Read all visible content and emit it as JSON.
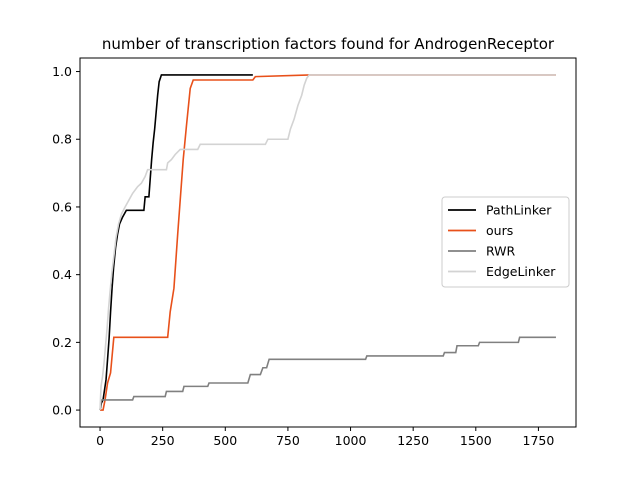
{
  "chart_data": {
    "type": "line",
    "title": "number of transcription factors found for AndrogenReceptor",
    "xlabel": "",
    "ylabel": "",
    "xlim": [
      -80,
      1900
    ],
    "ylim": [
      -0.05,
      1.04
    ],
    "xticks": [
      0,
      250,
      500,
      750,
      1000,
      1250,
      1500,
      1750
    ],
    "xtick_labels": [
      "0",
      "250",
      "500",
      "750",
      "1000",
      "1250",
      "1500",
      "1750"
    ],
    "yticks": [
      0.0,
      0.2,
      0.4,
      0.6,
      0.8,
      1.0
    ],
    "ytick_labels": [
      "0.0",
      "0.2",
      "0.4",
      "0.6",
      "0.8",
      "1.0"
    ],
    "grid": false,
    "legend": "center-right",
    "series": [
      {
        "name": "PathLinker",
        "color": "#000000",
        "points": [
          [
            0,
            0
          ],
          [
            5,
            0.02
          ],
          [
            12,
            0.03
          ],
          [
            18,
            0.06
          ],
          [
            24,
            0.09
          ],
          [
            30,
            0.15
          ],
          [
            36,
            0.21
          ],
          [
            42,
            0.29
          ],
          [
            48,
            0.36
          ],
          [
            54,
            0.42
          ],
          [
            62,
            0.48
          ],
          [
            70,
            0.52
          ],
          [
            78,
            0.55
          ],
          [
            90,
            0.57
          ],
          [
            105,
            0.59
          ],
          [
            175,
            0.59
          ],
          [
            180,
            0.63
          ],
          [
            195,
            0.63
          ],
          [
            200,
            0.68
          ],
          [
            206,
            0.74
          ],
          [
            212,
            0.79
          ],
          [
            218,
            0.83
          ],
          [
            224,
            0.88
          ],
          [
            230,
            0.93
          ],
          [
            236,
            0.97
          ],
          [
            245,
            0.99
          ],
          [
            610,
            0.99
          ]
        ]
      },
      {
        "name": "ours",
        "color": "#e8501a",
        "points": [
          [
            0,
            0
          ],
          [
            12,
            0
          ],
          [
            20,
            0.03
          ],
          [
            30,
            0.08
          ],
          [
            42,
            0.11
          ],
          [
            55,
            0.215
          ],
          [
            270,
            0.215
          ],
          [
            280,
            0.29
          ],
          [
            295,
            0.36
          ],
          [
            310,
            0.52
          ],
          [
            320,
            0.62
          ],
          [
            332,
            0.74
          ],
          [
            345,
            0.84
          ],
          [
            360,
            0.95
          ],
          [
            372,
            0.975
          ],
          [
            610,
            0.975
          ],
          [
            620,
            0.985
          ],
          [
            840,
            0.99
          ],
          [
            1820,
            0.99
          ]
        ]
      },
      {
        "name": "RWR",
        "color": "#808080",
        "points": [
          [
            0,
            0
          ],
          [
            5,
            0.03
          ],
          [
            130,
            0.03
          ],
          [
            135,
            0.04
          ],
          [
            260,
            0.04
          ],
          [
            265,
            0.055
          ],
          [
            330,
            0.055
          ],
          [
            335,
            0.07
          ],
          [
            430,
            0.07
          ],
          [
            435,
            0.08
          ],
          [
            590,
            0.08
          ],
          [
            600,
            0.105
          ],
          [
            640,
            0.105
          ],
          [
            650,
            0.125
          ],
          [
            665,
            0.125
          ],
          [
            675,
            0.15
          ],
          [
            1060,
            0.15
          ],
          [
            1065,
            0.16
          ],
          [
            1370,
            0.16
          ],
          [
            1375,
            0.17
          ],
          [
            1420,
            0.17
          ],
          [
            1425,
            0.19
          ],
          [
            1510,
            0.19
          ],
          [
            1515,
            0.2
          ],
          [
            1670,
            0.2
          ],
          [
            1675,
            0.215
          ],
          [
            1820,
            0.215
          ]
        ]
      },
      {
        "name": "EdgeLinker",
        "color": "#d3d3d3",
        "points": [
          [
            0,
            0
          ],
          [
            4,
            0.07
          ],
          [
            10,
            0.1
          ],
          [
            16,
            0.14
          ],
          [
            22,
            0.19
          ],
          [
            28,
            0.24
          ],
          [
            34,
            0.3
          ],
          [
            40,
            0.35
          ],
          [
            48,
            0.41
          ],
          [
            56,
            0.46
          ],
          [
            64,
            0.51
          ],
          [
            74,
            0.55
          ],
          [
            86,
            0.58
          ],
          [
            100,
            0.6
          ],
          [
            115,
            0.62
          ],
          [
            130,
            0.64
          ],
          [
            150,
            0.66
          ],
          [
            165,
            0.67
          ],
          [
            180,
            0.69
          ],
          [
            190,
            0.71
          ],
          [
            265,
            0.71
          ],
          [
            270,
            0.73
          ],
          [
            285,
            0.74
          ],
          [
            300,
            0.755
          ],
          [
            320,
            0.77
          ],
          [
            390,
            0.77
          ],
          [
            400,
            0.785
          ],
          [
            660,
            0.785
          ],
          [
            670,
            0.8
          ],
          [
            750,
            0.8
          ],
          [
            760,
            0.83
          ],
          [
            775,
            0.86
          ],
          [
            790,
            0.9
          ],
          [
            805,
            0.93
          ],
          [
            815,
            0.96
          ],
          [
            825,
            0.98
          ],
          [
            835,
            0.99
          ],
          [
            1820,
            0.99
          ]
        ]
      }
    ]
  }
}
